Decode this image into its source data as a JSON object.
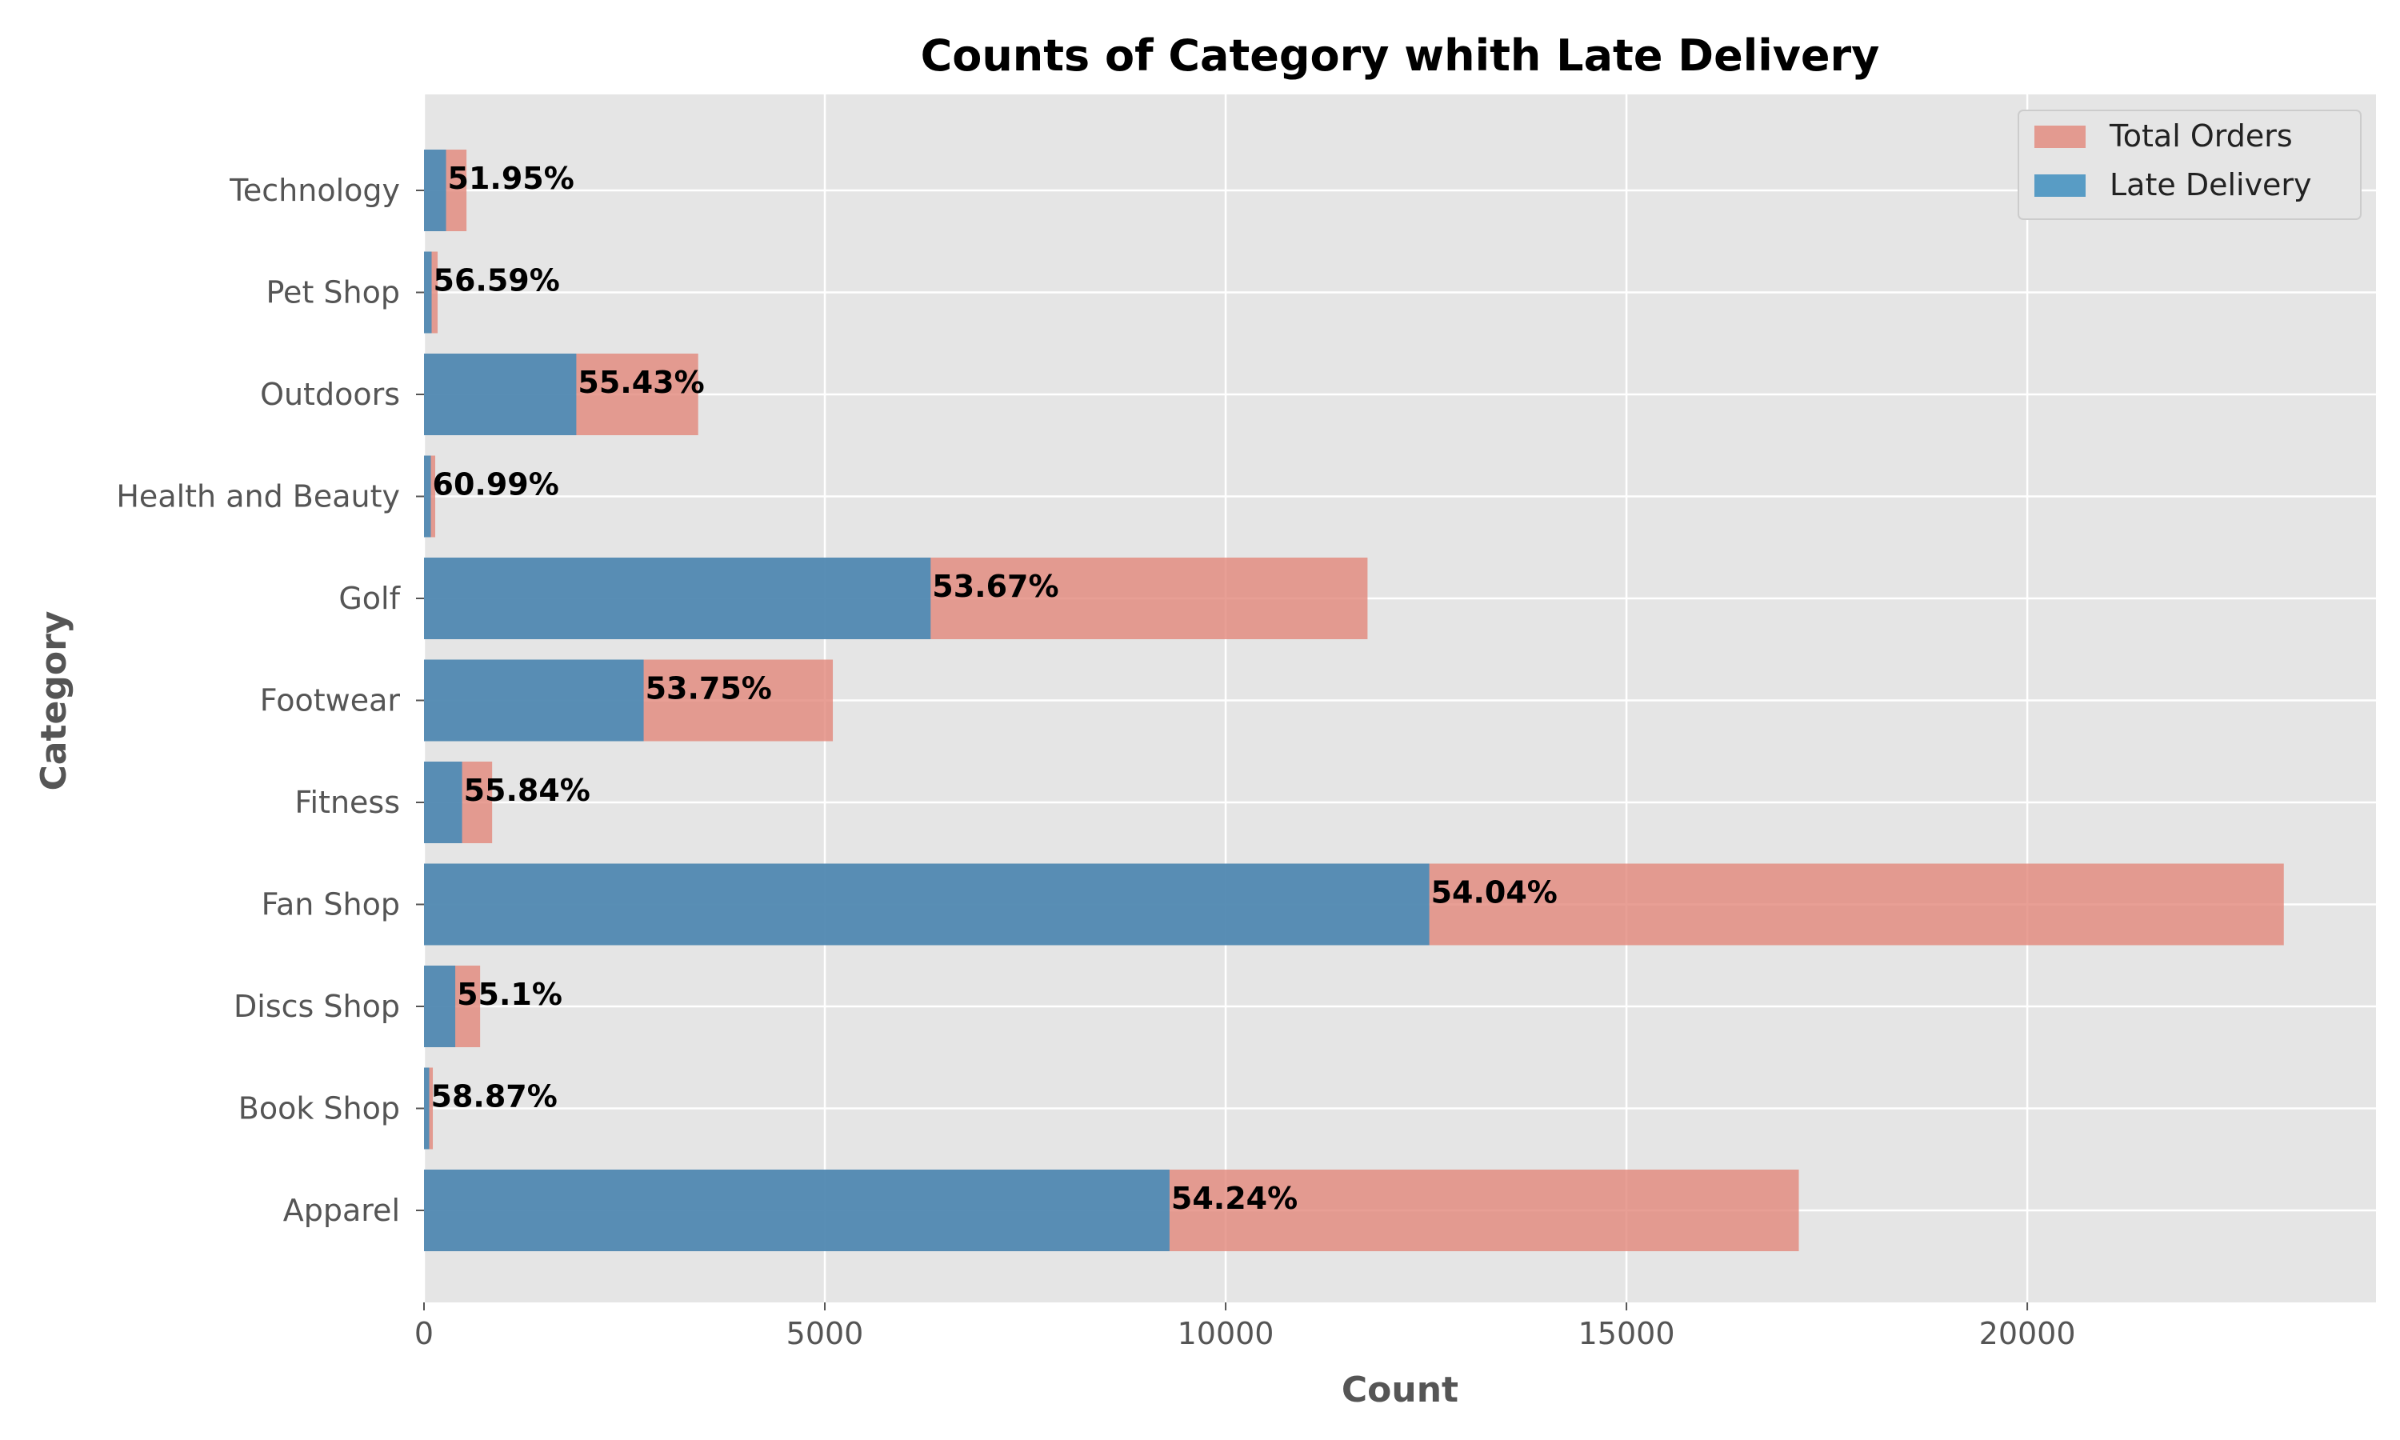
{
  "chart_data": {
    "type": "bar",
    "orientation": "horizontal",
    "title": "Counts of Category whith Late Delivery",
    "xlabel": "Count",
    "ylabel": "Category",
    "categories": [
      "Apparel",
      "Book Shop",
      "Discs Shop",
      "Fan Shop",
      "Fitness",
      "Footwear",
      "Golf",
      "Health and Beauty",
      "Outdoors",
      "Pet Shop",
      "Technology"
    ],
    "series": [
      {
        "name": "Total Orders",
        "color": "#E2877A",
        "values": [
          17150,
          110,
          700,
          23200,
          850,
          5100,
          11770,
          140,
          3420,
          170,
          530
        ]
      },
      {
        "name": "Late Delivery",
        "color": "#348ABD",
        "values": [
          9300,
          65,
          390,
          12540,
          475,
          2740,
          6320,
          85,
          1900,
          95,
          275
        ]
      }
    ],
    "data_labels": [
      "54.24%",
      "58.87%",
      "55.1%",
      "54.04%",
      "55.84%",
      "53.75%",
      "53.67%",
      "60.99%",
      "55.43%",
      "56.59%",
      "51.95%"
    ],
    "xlim": [
      0,
      24350
    ],
    "xticks": [
      0,
      5000,
      10000,
      15000,
      20000
    ],
    "xtick_labels": [
      "0",
      "5000",
      "10000",
      "15000",
      "20000"
    ],
    "grid": true,
    "legend_position": "top-right",
    "background_color": "#E5E5E5"
  }
}
